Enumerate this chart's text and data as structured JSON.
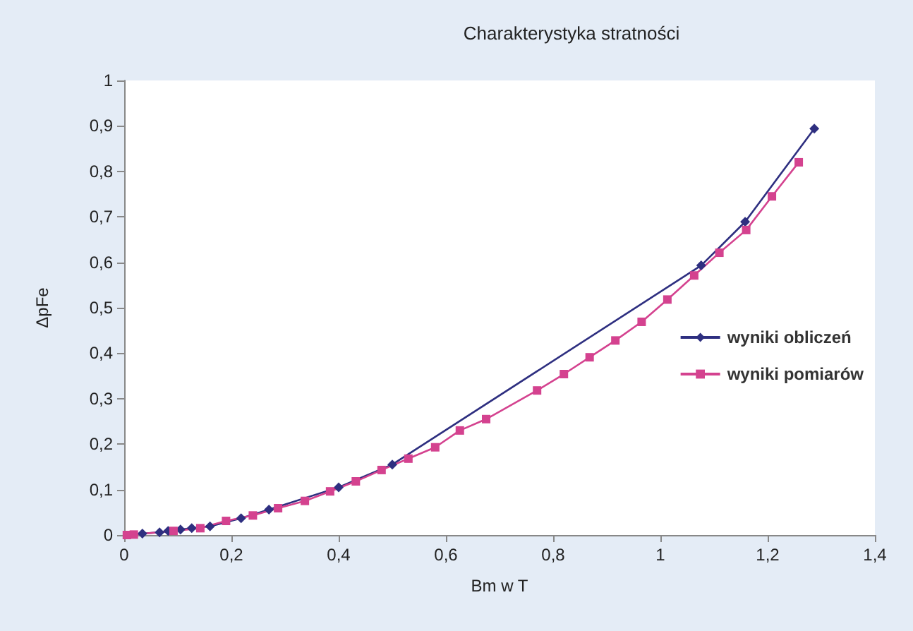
{
  "chart_data": {
    "type": "line",
    "title": "Charakterystyka stratności",
    "xlabel": "Bm w T",
    "ylabel": "ΔpFe",
    "xlim": [
      0,
      1.4
    ],
    "xticks": [
      0,
      {
        "value": 0.2,
        "label": "0,2"
      },
      {
        "value": 0.4,
        "label": "0,4"
      },
      {
        "value": 0.6,
        "label": "0,6"
      },
      {
        "value": 0.8,
        "label": "0,8"
      },
      1,
      {
        "value": 1.2,
        "label": "1,2"
      },
      {
        "value": 1.4,
        "label": "1,4"
      }
    ],
    "ylim": [
      0,
      1
    ],
    "yticks": [
      0,
      {
        "value": 0.1,
        "label": "0,1"
      },
      {
        "value": 0.2,
        "label": "0,2"
      },
      {
        "value": 0.3,
        "label": "0,3"
      },
      {
        "value": 0.4,
        "label": "0,4"
      },
      {
        "value": 0.5,
        "label": "0,5"
      },
      {
        "value": 0.6,
        "label": "0,6"
      },
      {
        "value": 0.7,
        "label": "0,7"
      },
      {
        "value": 0.8,
        "label": "0,8"
      },
      {
        "value": 0.9,
        "label": "0,9"
      },
      1
    ],
    "grid": false,
    "legend": "right",
    "series": [
      {
        "name": "wyniki obliczeń",
        "color": "#2e2f80",
        "marker": "diamond",
        "x": [
          0.034,
          0.066,
          0.082,
          0.105,
          0.126,
          0.16,
          0.218,
          0.27,
          0.4,
          0.5,
          1.076,
          1.158,
          1.287
        ],
        "values": [
          0.003,
          0.006,
          0.009,
          0.012,
          0.015,
          0.019,
          0.037,
          0.056,
          0.105,
          0.155,
          0.593,
          0.689,
          0.894
        ]
      },
      {
        "name": "wyniki pomiarów",
        "color": "#d4428f",
        "marker": "square",
        "x": [
          0.005,
          0.018,
          0.092,
          0.142,
          0.19,
          0.24,
          0.287,
          0.337,
          0.384,
          0.432,
          0.48,
          0.53,
          0.58,
          0.626,
          0.675,
          0.77,
          0.82,
          0.868,
          0.916,
          0.965,
          1.013,
          1.063,
          1.11,
          1.16,
          1.208,
          1.258
        ],
        "values": [
          0,
          0.001,
          0.009,
          0.015,
          0.031,
          0.043,
          0.059,
          0.075,
          0.096,
          0.118,
          0.143,
          0.168,
          0.193,
          0.23,
          0.255,
          0.318,
          0.354,
          0.391,
          0.428,
          0.469,
          0.518,
          0.571,
          0.621,
          0.671,
          0.745,
          0.82
        ]
      }
    ]
  }
}
